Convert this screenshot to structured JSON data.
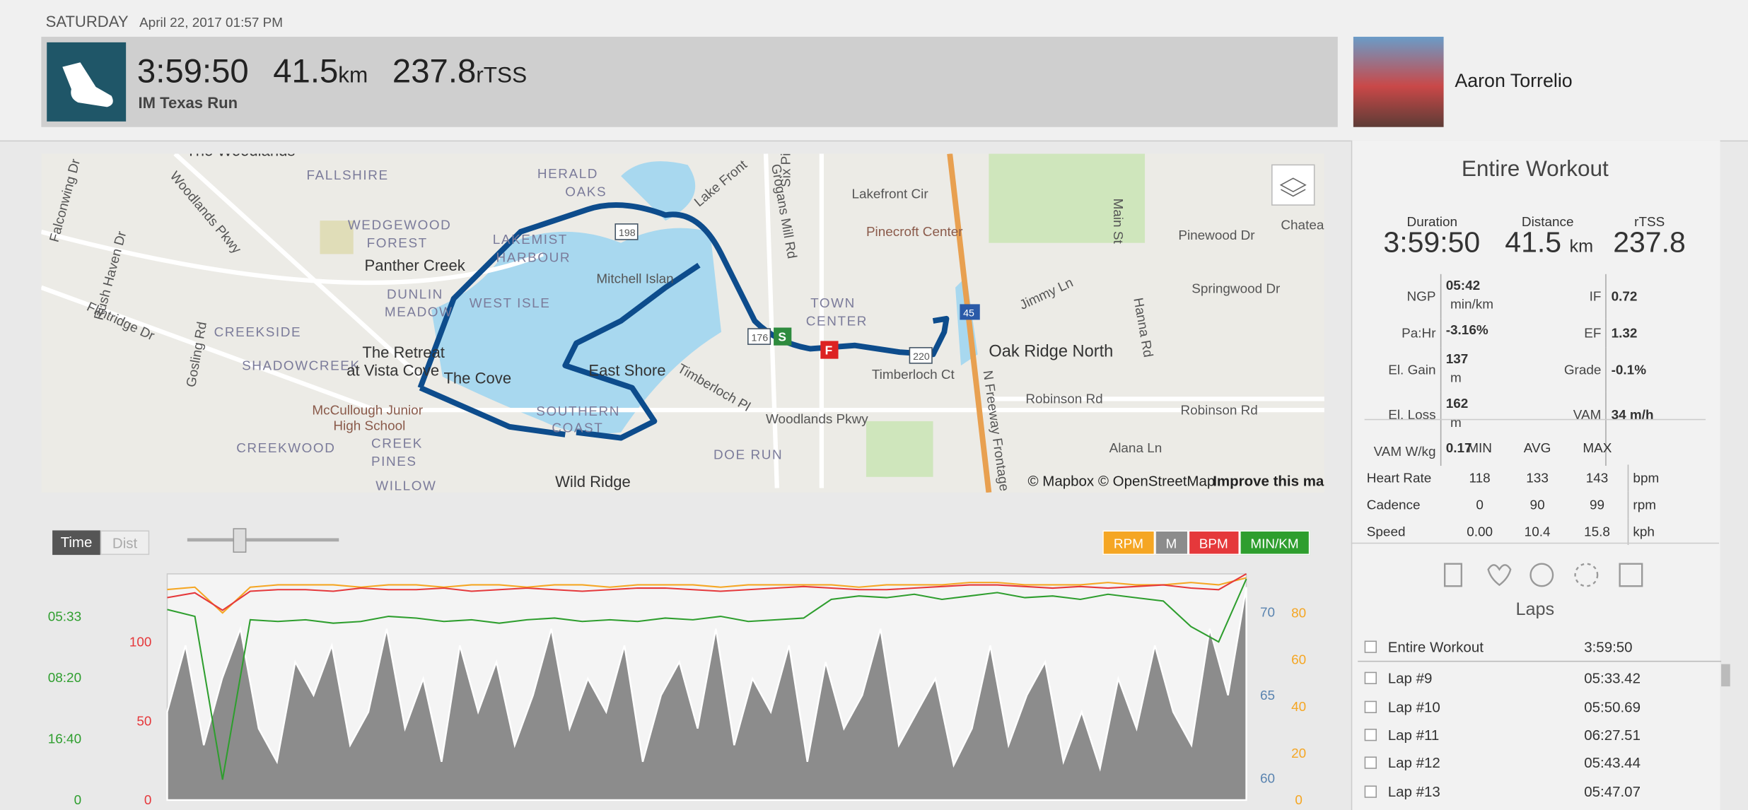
{
  "header": {
    "day": "SATURDAY",
    "datetime": "April 22, 2017 01:57 PM",
    "duration": "3:59:50",
    "distance": "41.5",
    "distance_unit": "km",
    "tss": "237.8",
    "tss_unit": "rTSS",
    "workout_title": "IM Texas Run",
    "athlete": "Aaron Torrelio"
  },
  "map": {
    "labels": [
      "The Woodlands",
      "FALLSHIRE",
      "HERALD",
      "OAKS",
      "Lake Front",
      "Grogans Mill Rd",
      "Six Pines",
      "Lakefront Cir",
      "Pinecroft Center",
      "Main St",
      "Pinewood Dr",
      "Chatea",
      "Falconwing Dr",
      "Woodlands Pkwy",
      "WEDGEWOOD",
      "FOREST",
      "LAKEMIST",
      "HARBOUR",
      "Panther Creek",
      "Mitchell Islan",
      "TOWN",
      "CENTER",
      "DUNLIN",
      "MEADOW",
      "WEST ISLE",
      "Jimmy Ln",
      "Springwood Dr",
      "Rush Haven Dr",
      "Flintridge Dr",
      "CREEKSIDE",
      "Gosling Rd",
      "SHADOWCREEK",
      "The Retreat",
      "at Vista Cove",
      "The Cove",
      "East Shore",
      "Timberloch Pl",
      "Oak Ridge North",
      "Hanna Rd",
      "McCullough Junior",
      "High School",
      "SOUTHERN",
      "COAST",
      "Woodlands Pkwy",
      "Robinson Rd",
      "Robinson Rd",
      "CREEKWOOD",
      "CREEK",
      "PINES",
      "DOE RUN",
      "Alana Ln",
      "WILLOW",
      "Wild Ridge",
      "N Freeway Frontage",
      "Timberloch Ct"
    ],
    "shields": [
      "198",
      "176",
      "220",
      "45"
    ],
    "markers": [
      "S",
      "F"
    ],
    "attribution": "© Mapbox © OpenStreetMap",
    "improve": "Improve this map"
  },
  "chart_controls": {
    "time": "Time",
    "dist": "Dist"
  },
  "chart_data": {
    "type": "line",
    "series": [
      {
        "name": "RPM",
        "color": "#f5a623",
        "ylim": [
          0,
          96.7
        ],
        "yticks": [
          0,
          20,
          40,
          60,
          80
        ],
        "values": [
          90,
          91,
          80,
          91,
          92,
          92,
          92,
          91,
          92,
          92,
          91,
          92,
          92,
          91,
          92,
          92,
          91,
          92,
          92,
          92,
          91,
          92,
          92,
          92,
          92,
          91,
          92,
          92,
          92,
          93,
          93,
          92,
          92,
          92,
          93,
          92,
          92,
          93,
          92,
          95
        ]
      },
      {
        "name": "M",
        "color": "#8c8c8c",
        "axis_color": "#5a84b0",
        "area": true,
        "ylim": [
          58.7,
          72.3
        ],
        "yticks": [
          60,
          65,
          70
        ],
        "values": [
          64,
          68,
          62,
          66,
          69,
          63,
          61,
          67,
          65,
          68,
          62,
          64,
          69,
          63,
          66,
          61,
          68,
          64,
          67,
          62,
          65,
          69,
          63,
          66,
          64,
          68,
          61,
          65,
          67,
          63,
          69,
          62,
          66,
          64,
          68,
          61,
          67,
          63,
          65,
          69,
          62,
          64,
          66,
          60.8,
          63,
          68,
          62,
          65,
          67,
          61,
          64,
          60.6,
          66,
          63,
          68,
          64,
          62,
          69,
          65,
          71.5
        ]
      },
      {
        "name": "BPM",
        "color": "#e5383b",
        "ylim": [
          0,
          143
        ],
        "yticks": [
          0,
          50,
          100
        ],
        "values": [
          128,
          131,
          120,
          132,
          133,
          133,
          132,
          134,
          133,
          133,
          134,
          132,
          133,
          134,
          133,
          132,
          133,
          134,
          134,
          133,
          132,
          133,
          134,
          135,
          134,
          133,
          133,
          134,
          135,
          136,
          136,
          135,
          134,
          135,
          134,
          135,
          136,
          134,
          133,
          143
        ]
      },
      {
        "name": "MIN/KM",
        "color": "#2e9e2e",
        "ylim": [
          0,
          13.3
        ],
        "yticks": [
          {
            "value": 0,
            "label": "0"
          },
          {
            "value": 3.6,
            "label": "16:40"
          },
          {
            "value": 7.2,
            "label": "08:20"
          },
          {
            "value": 10.8,
            "label": "05:33"
          }
        ],
        "values": [
          11.2,
          10.8,
          1.2,
          10.6,
          10.5,
          10.6,
          10.4,
          10.5,
          10.8,
          10.7,
          10.5,
          10.6,
          10.4,
          10.6,
          10.7,
          10.5,
          10.6,
          10.5,
          10.7,
          10.6,
          10.8,
          10.5,
          10.6,
          10.7,
          11.8,
          12.0,
          11.9,
          12.1,
          11.8,
          12.0,
          12.2,
          11.9,
          12.0,
          11.8,
          12.1,
          11.9,
          11.7,
          10.2,
          9.3,
          13.0
        ]
      }
    ]
  },
  "summary": {
    "title": "Entire Workout",
    "labels": [
      "Duration",
      "Distance",
      "rTSS"
    ],
    "duration": "3:59:50",
    "distance": "41.5",
    "distance_unit": "km",
    "tss": "237.8",
    "stats": [
      [
        "NGP",
        "05:42",
        "min/km",
        "IF",
        "0.72"
      ],
      [
        "Pa:Hr",
        "-3.16%",
        "",
        "EF",
        "1.32"
      ],
      [
        "El. Gain",
        "137",
        "m",
        "Grade",
        "-0.1%"
      ],
      [
        "El. Loss",
        "162",
        "m",
        "VAM",
        "34 m/h"
      ],
      [
        "VAM W/kg",
        "0.17",
        "",
        "",
        ""
      ]
    ],
    "table": {
      "header": [
        "MIN",
        "AVG",
        "MAX"
      ],
      "rows": [
        [
          "Heart Rate",
          "118",
          "133",
          "143",
          "bpm"
        ],
        [
          "Cadence",
          "0",
          "90",
          "99",
          "rpm"
        ],
        [
          "Speed",
          "0.00",
          "10.4",
          "15.8",
          "kph"
        ]
      ]
    }
  },
  "laps": {
    "title": "Laps",
    "rows": [
      [
        "Entire Workout",
        "3:59:50"
      ],
      [
        "Lap #9",
        "05:33.42"
      ],
      [
        "Lap #10",
        "05:50.69"
      ],
      [
        "Lap #11",
        "06:27.51"
      ],
      [
        "Lap #12",
        "05:43.44"
      ],
      [
        "Lap #13",
        "05:47.07"
      ]
    ]
  }
}
